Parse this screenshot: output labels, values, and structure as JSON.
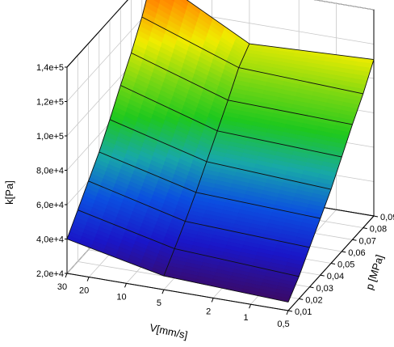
{
  "chart_data": {
    "type": "surface",
    "zlabel": "k[Pa]",
    "xlabel": "V[mm/s]",
    "ylabel": "p [MPa]",
    "z_ticks": [
      "2,0e+4",
      "4,0e+4",
      "6,0e+4",
      "8,0e+4",
      "1,0e+5",
      "1,2e+5",
      "1,4e+5"
    ],
    "z_tick_values": [
      20000,
      40000,
      60000,
      80000,
      100000,
      120000,
      140000
    ],
    "zlim": [
      20000,
      140000
    ],
    "v_ticks": [
      "30",
      "20",
      "10",
      "5",
      "2",
      "1",
      "0,5"
    ],
    "p_ticks": [
      "0,01",
      "0,02",
      "0,03",
      "0,04",
      "0,05",
      "0,06",
      "0,07",
      "0,08",
      "0,09"
    ],
    "V": [
      30,
      5,
      0.5
    ],
    "p": [
      0.01,
      0.02,
      0.03,
      0.04,
      0.05,
      0.06,
      0.07,
      0.08,
      0.09
    ],
    "k": [
      [
        40000,
        28000,
        25000
      ],
      [
        50000,
        37000,
        33000
      ],
      [
        60000,
        46000,
        43000
      ],
      [
        70000,
        56000,
        53000
      ],
      [
        82000,
        67000,
        63000
      ],
      [
        95000,
        78000,
        75000
      ],
      [
        107000,
        89000,
        87000
      ],
      [
        121000,
        101000,
        98000
      ],
      [
        138000,
        108000,
        111000
      ]
    ],
    "colormap": [
      "#3b0a66",
      "#1a16c8",
      "#0b4fe0",
      "#18a8a8",
      "#1ec81e",
      "#7ed812",
      "#f0ec00",
      "#ff9400",
      "#ff5000"
    ],
    "grid": true
  }
}
